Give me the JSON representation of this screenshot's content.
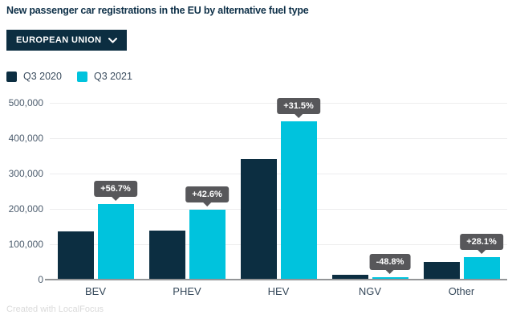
{
  "title": "New passenger car registrations in the EU by alternative fuel type",
  "dropdown": {
    "label": "EUROPEAN UNION"
  },
  "footer": "Created with LocalFocus",
  "colors": {
    "navy": "#0c2e41",
    "cyan": "#00c3dd",
    "badge_bg": "#57575a",
    "gridline": "#ededee",
    "baseline": "#939597",
    "title_text": "#0e3048",
    "axis_text": "#4d5d6e"
  },
  "chart_data": {
    "type": "bar",
    "categories": [
      "BEV",
      "PHEV",
      "HEV",
      "NGV",
      "Other"
    ],
    "series": [
      {
        "name": "Q3 2020",
        "color": "#0c2e41",
        "values": [
          136000,
          139000,
          341000,
          14000,
          49000
        ]
      },
      {
        "name": "Q3 2021",
        "color": "#00c3dd",
        "values": [
          213000,
          198000,
          448000,
          7000,
          63000
        ]
      }
    ],
    "change_labels": [
      "+56.7%",
      "+42.6%",
      "+31.5%",
      "-48.8%",
      "+28.1%"
    ],
    "title": "New passenger car registrations in the EU by alternative fuel type",
    "xlabel": "",
    "ylabel": "",
    "ylim": [
      0,
      500000
    ],
    "ytick_labels": [
      "500,000",
      "400,000",
      "300,000",
      "200,000",
      "100,000",
      "0"
    ],
    "grid": true,
    "legend_position": "top-left"
  }
}
